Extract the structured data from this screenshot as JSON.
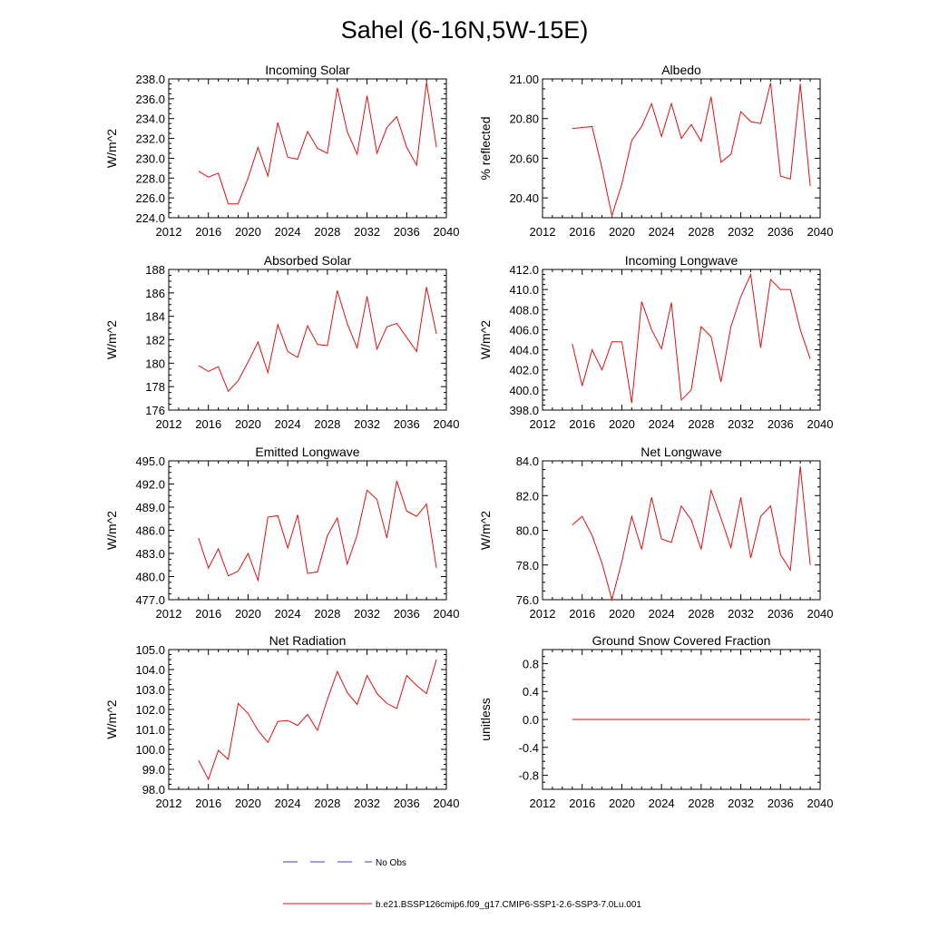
{
  "figure": {
    "title": "Sahel (6-16N,5W-15E)"
  },
  "legend": {
    "items": [
      {
        "label": "No Obs",
        "color": "#3b3bd6",
        "style": "dashed"
      },
      {
        "label": "b.e21.BSSP126cmip6.f09_g17.CMIP6-SSP1-2.6-SSP3-7.0Lu.001",
        "color": "#e01010",
        "style": "solid"
      }
    ]
  },
  "colors": {
    "series": "#e01010",
    "axis": "#000000"
  },
  "chart_data": [
    {
      "type": "line",
      "title": "Incoming Solar",
      "xlabel": "",
      "ylabel": "W/m^2",
      "xlim": [
        2012,
        2040
      ],
      "ylim": [
        224,
        238
      ],
      "xticks": [
        "2012",
        "2016",
        "2020",
        "2024",
        "2028",
        "2032",
        "2036",
        "2040"
      ],
      "yticks": [
        "224.0",
        "226.0",
        "228.0",
        "230.0",
        "232.0",
        "234.0",
        "236.0",
        "238.0"
      ],
      "grid": false,
      "x": [
        2015,
        2016,
        2017,
        2018,
        2019,
        2020,
        2021,
        2022,
        2023,
        2024,
        2025,
        2026,
        2027,
        2028,
        2029,
        2030,
        2031,
        2032,
        2033,
        2034,
        2035,
        2036,
        2037,
        2038,
        2039
      ],
      "series": [
        {
          "values": [
            228.7,
            228.1,
            228.5,
            225.4,
            225.4,
            228.0,
            231.1,
            228.2,
            233.6,
            230.1,
            229.9,
            232.7,
            231.0,
            230.5,
            237.1,
            232.7,
            230.4,
            236.3,
            230.5,
            233.1,
            234.2,
            231.1,
            229.3,
            237.7,
            231.1
          ]
        }
      ]
    },
    {
      "type": "line",
      "title": "Albedo",
      "xlabel": "",
      "ylabel": "% reflected",
      "xlim": [
        2012,
        2040
      ],
      "ylim": [
        20.3,
        21.0
      ],
      "xticks": [
        "2012",
        "2016",
        "2020",
        "2024",
        "2028",
        "2032",
        "2036",
        "2040"
      ],
      "yticks": [
        "20.40",
        "20.60",
        "20.80",
        "21.00"
      ],
      "grid": false,
      "x": [
        2015,
        2016,
        2017,
        2018,
        2019,
        2020,
        2021,
        2022,
        2023,
        2024,
        2025,
        2026,
        2027,
        2028,
        2029,
        2030,
        2031,
        2032,
        2033,
        2034,
        2035,
        2036,
        2037,
        2038,
        2039
      ],
      "series": [
        {
          "values": [
            20.75,
            20.755,
            20.76,
            20.55,
            20.31,
            20.47,
            20.69,
            20.76,
            20.875,
            20.71,
            20.875,
            20.7,
            20.77,
            20.685,
            20.91,
            20.58,
            20.62,
            20.835,
            20.785,
            20.775,
            20.98,
            20.51,
            20.495,
            20.975,
            20.46
          ]
        }
      ]
    },
    {
      "type": "line",
      "title": "Absorbed Solar",
      "xlabel": "",
      "ylabel": "W/m^2",
      "xlim": [
        2012,
        2040
      ],
      "ylim": [
        176,
        188
      ],
      "xticks": [
        "2012",
        "2016",
        "2020",
        "2024",
        "2028",
        "2032",
        "2036",
        "2040"
      ],
      "yticks": [
        "176",
        "178",
        "180",
        "182",
        "184",
        "186",
        "188"
      ],
      "grid": false,
      "x": [
        2015,
        2016,
        2017,
        2018,
        2019,
        2020,
        2021,
        2022,
        2023,
        2024,
        2025,
        2026,
        2027,
        2028,
        2029,
        2030,
        2031,
        2032,
        2033,
        2034,
        2035,
        2036,
        2037,
        2038,
        2039
      ],
      "series": [
        {
          "values": [
            179.8,
            179.3,
            179.7,
            177.6,
            178.5,
            180.1,
            181.8,
            179.2,
            183.3,
            181.0,
            180.5,
            183.2,
            181.6,
            181.5,
            186.2,
            183.4,
            181.3,
            185.7,
            181.2,
            183.1,
            183.4,
            182.2,
            181.0,
            186.5,
            182.5
          ]
        }
      ]
    },
    {
      "type": "line",
      "title": "Incoming Longwave",
      "xlabel": "",
      "ylabel": "W/m^2",
      "xlim": [
        2012,
        2040
      ],
      "ylim": [
        398,
        412
      ],
      "xticks": [
        "2012",
        "2016",
        "2020",
        "2024",
        "2028",
        "2032",
        "2036",
        "2040"
      ],
      "yticks": [
        "398.0",
        "400.0",
        "402.0",
        "404.0",
        "406.0",
        "408.0",
        "410.0",
        "412.0"
      ],
      "grid": false,
      "x": [
        2015,
        2016,
        2017,
        2018,
        2019,
        2020,
        2021,
        2022,
        2023,
        2024,
        2025,
        2026,
        2027,
        2028,
        2029,
        2030,
        2031,
        2032,
        2033,
        2034,
        2035,
        2036,
        2037,
        2038,
        2039
      ],
      "series": [
        {
          "values": [
            404.6,
            400.4,
            404.0,
            402.0,
            404.8,
            404.8,
            398.7,
            408.8,
            406.0,
            404.1,
            408.7,
            399.0,
            400.0,
            406.3,
            405.3,
            400.8,
            406.3,
            409.3,
            411.5,
            404.2,
            411.0,
            410.0,
            410.0,
            406.0,
            403.1
          ]
        }
      ]
    },
    {
      "type": "line",
      "title": "Emitted Longwave",
      "xlabel": "",
      "ylabel": "W/m^2",
      "xlim": [
        2012,
        2040
      ],
      "ylim": [
        477,
        495
      ],
      "xticks": [
        "2012",
        "2016",
        "2020",
        "2024",
        "2028",
        "2032",
        "2036",
        "2040"
      ],
      "yticks": [
        "477.0",
        "480.0",
        "483.0",
        "486.0",
        "489.0",
        "492.0",
        "495.0"
      ],
      "grid": false,
      "x": [
        2015,
        2016,
        2017,
        2018,
        2019,
        2020,
        2021,
        2022,
        2023,
        2024,
        2025,
        2026,
        2027,
        2028,
        2029,
        2030,
        2031,
        2032,
        2033,
        2034,
        2035,
        2036,
        2037,
        2038,
        2039
      ],
      "series": [
        {
          "values": [
            485.0,
            481.1,
            483.6,
            480.1,
            480.7,
            483.0,
            479.5,
            487.7,
            487.9,
            483.7,
            488.0,
            480.4,
            480.6,
            485.3,
            487.6,
            481.6,
            485.4,
            491.2,
            490.0,
            485.0,
            492.4,
            488.5,
            487.8,
            489.4,
            481.1
          ]
        }
      ]
    },
    {
      "type": "line",
      "title": "Net Longwave",
      "xlabel": "",
      "ylabel": "W/m^2",
      "xlim": [
        2012,
        2040
      ],
      "ylim": [
        76,
        84
      ],
      "xticks": [
        "2012",
        "2016",
        "2020",
        "2024",
        "2028",
        "2032",
        "2036",
        "2040"
      ],
      "yticks": [
        "76.0",
        "78.0",
        "80.0",
        "82.0",
        "84.0"
      ],
      "grid": false,
      "x": [
        2015,
        2016,
        2017,
        2018,
        2019,
        2020,
        2021,
        2022,
        2023,
        2024,
        2025,
        2026,
        2027,
        2028,
        2029,
        2030,
        2031,
        2032,
        2033,
        2034,
        2035,
        2036,
        2037,
        2038,
        2039
      ],
      "series": [
        {
          "values": [
            80.3,
            80.8,
            79.7,
            78.1,
            76.0,
            78.2,
            80.8,
            78.9,
            81.9,
            79.5,
            79.3,
            81.4,
            80.6,
            78.9,
            82.3,
            80.7,
            79.0,
            81.9,
            78.4,
            80.8,
            81.4,
            78.6,
            77.7,
            83.7,
            78.0
          ]
        }
      ]
    },
    {
      "type": "line",
      "title": "Net Radiation",
      "xlabel": "",
      "ylabel": "W/m^2",
      "xlim": [
        2012,
        2040
      ],
      "ylim": [
        98,
        105
      ],
      "xticks": [
        "2012",
        "2016",
        "2020",
        "2024",
        "2028",
        "2032",
        "2036",
        "2040"
      ],
      "yticks": [
        "98.0",
        "99.0",
        "100.0",
        "101.0",
        "102.0",
        "103.0",
        "104.0",
        "105.0"
      ],
      "grid": false,
      "x": [
        2015,
        2016,
        2017,
        2018,
        2019,
        2020,
        2021,
        2022,
        2023,
        2024,
        2025,
        2026,
        2027,
        2028,
        2029,
        2030,
        2031,
        2032,
        2033,
        2034,
        2035,
        2036,
        2037,
        2038,
        2039
      ],
      "series": [
        {
          "values": [
            99.45,
            98.5,
            99.95,
            99.5,
            102.3,
            101.8,
            100.95,
            100.35,
            101.4,
            101.45,
            101.2,
            101.75,
            100.95,
            102.5,
            103.9,
            102.85,
            102.25,
            103.7,
            102.8,
            102.3,
            102.05,
            103.7,
            103.2,
            102.8,
            104.5
          ]
        }
      ]
    },
    {
      "type": "line",
      "title": "Ground Snow Covered Fraction",
      "xlabel": "",
      "ylabel": "unitless",
      "xlim": [
        2012,
        2040
      ],
      "ylim": [
        -1.0,
        1.0
      ],
      "xticks": [
        "2012",
        "2016",
        "2020",
        "2024",
        "2028",
        "2032",
        "2036",
        "2040"
      ],
      "yticks": [
        "-0.8",
        "-0.4",
        "0.0",
        "0.4",
        "0.8"
      ],
      "grid": false,
      "x": [
        2015,
        2016,
        2017,
        2018,
        2019,
        2020,
        2021,
        2022,
        2023,
        2024,
        2025,
        2026,
        2027,
        2028,
        2029,
        2030,
        2031,
        2032,
        2033,
        2034,
        2035,
        2036,
        2037,
        2038,
        2039
      ],
      "series": [
        {
          "values": [
            0,
            0,
            0,
            0,
            0,
            0,
            0,
            0,
            0,
            0,
            0,
            0,
            0,
            0,
            0,
            0,
            0,
            0,
            0,
            0,
            0,
            0,
            0,
            0,
            0
          ]
        }
      ]
    }
  ]
}
